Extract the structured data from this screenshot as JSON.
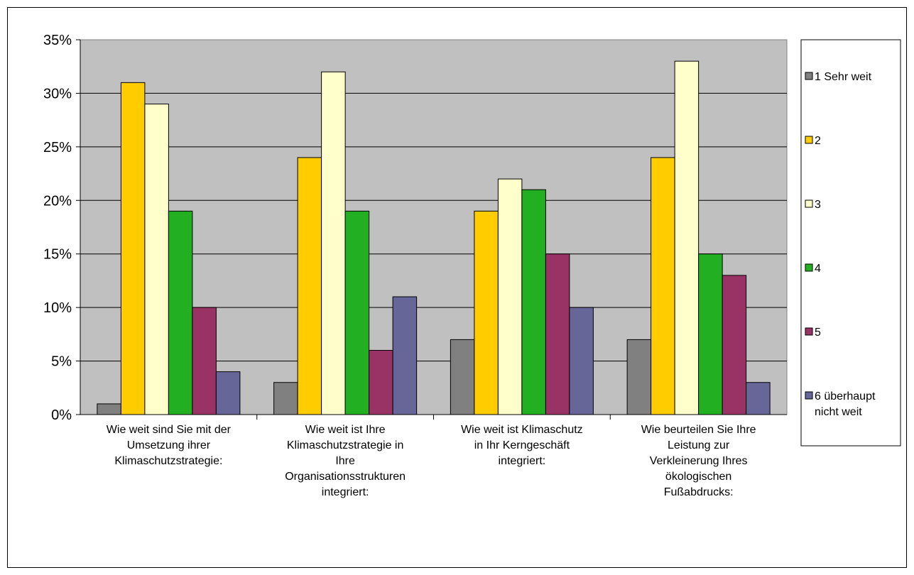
{
  "chart_data": {
    "type": "bar",
    "categories": [
      [
        "Wie weit sind Sie mit der",
        "Umsetzung ihrer",
        "Klimaschutzstrategie:"
      ],
      [
        "Wie weit ist Ihre",
        "Klimaschutzstrategie in",
        "Ihre",
        "Organisationsstrukturen",
        "integriert:"
      ],
      [
        "Wie weit ist Klimaschutz",
        "in Ihr Kerngeschäft",
        "integriert:"
      ],
      [
        "Wie beurteilen Sie Ihre",
        "Leistung zur",
        "Verkleinerung Ihres",
        "ökologischen",
        "Fußabdrucks:"
      ]
    ],
    "series": [
      {
        "name": [
          "1 Sehr weit"
        ],
        "color": "#808080",
        "values": [
          1,
          3,
          7,
          7
        ]
      },
      {
        "name": [
          "2"
        ],
        "color": "#FFCC00",
        "values": [
          31,
          24,
          19,
          24
        ]
      },
      {
        "name": [
          "3"
        ],
        "color": "#FFFFCC",
        "values": [
          29,
          32,
          22,
          33
        ]
      },
      {
        "name": [
          "4"
        ],
        "color": "#22B022",
        "values": [
          19,
          19,
          21,
          15
        ]
      },
      {
        "name": [
          "5"
        ],
        "color": "#993366",
        "values": [
          10,
          6,
          15,
          13
        ]
      },
      {
        "name": [
          "6 überhaupt",
          "nicht weit"
        ],
        "color": "#666699",
        "values": [
          4,
          11,
          10,
          3
        ]
      }
    ],
    "yticks": [
      "0%",
      "5%",
      "10%",
      "15%",
      "20%",
      "25%",
      "30%",
      "35%"
    ],
    "ylim": [
      0,
      35
    ],
    "plot_background": "#C0C0C0",
    "grid": true,
    "legend_position": "right"
  }
}
